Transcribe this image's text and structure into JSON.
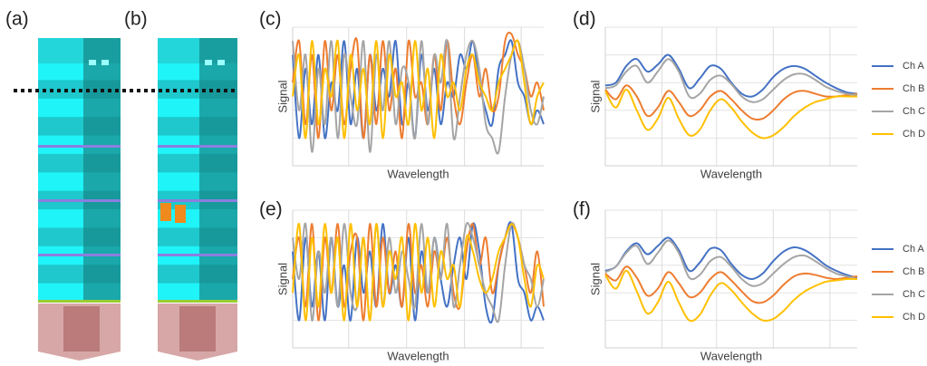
{
  "panel_labels": [
    "(a)",
    "(b)"
  ],
  "chart_data": [
    {
      "type": "line",
      "title": "(c)",
      "x_label": "Wavelength",
      "y_label": "Signal",
      "x": [
        0,
        1,
        2,
        3,
        4,
        5,
        6,
        7,
        8,
        9,
        10,
        11,
        12,
        13,
        14,
        15,
        16,
        17,
        18,
        19,
        20,
        21,
        22,
        23,
        24,
        25,
        26,
        27,
        28,
        29,
        30,
        31,
        32,
        33,
        34,
        35,
        36,
        37,
        38,
        39
      ],
      "xlim": [
        0,
        39
      ],
      "ylim": [
        0,
        10
      ],
      "xticks": [
        8.7,
        17.7,
        26.7,
        35.5
      ],
      "yticks": [
        2,
        4,
        6,
        8,
        10
      ],
      "grid": true,
      "series": [
        {
          "name": "Ch A",
          "color": "#4472c4",
          "values": [
            8,
            2,
            7,
            3,
            8,
            2,
            6,
            4,
            9,
            3,
            7,
            2,
            8,
            4,
            7,
            5,
            9,
            3,
            6,
            2,
            8,
            4,
            7,
            3,
            6,
            5,
            8,
            7,
            9,
            6,
            4,
            3,
            7,
            8,
            9,
            6,
            5,
            3,
            4,
            3
          ]
        },
        {
          "name": "Ch B",
          "color": "#ed7d31",
          "values": [
            6,
            9,
            3,
            8,
            2,
            9,
            4,
            8,
            3,
            7,
            9,
            2,
            8,
            3,
            9,
            4,
            7,
            2,
            9,
            5,
            6,
            3,
            8,
            4,
            9,
            5,
            3,
            6,
            8,
            5,
            7,
            4,
            5,
            9,
            9.5,
            8,
            7,
            5,
            6,
            4
          ]
        },
        {
          "name": "Ch C",
          "color": "#a5a5a5",
          "values": [
            9,
            4,
            8,
            1,
            7,
            3,
            9,
            2,
            8,
            5,
            3,
            9,
            1,
            8,
            4,
            9,
            3,
            7,
            6,
            2,
            9,
            3,
            8,
            6,
            9,
            2,
            5,
            8,
            9,
            7,
            3,
            2,
            1,
            5,
            8,
            9,
            7,
            4,
            3,
            5
          ]
        },
        {
          "name": "Ch D",
          "color": "#ffc000",
          "values": [
            5,
            8,
            2,
            9,
            3,
            7,
            5,
            9,
            2,
            8,
            4,
            7,
            3,
            9,
            2,
            8,
            5,
            6,
            3,
            9,
            4,
            7,
            2,
            8,
            5,
            6,
            4,
            7,
            8,
            6,
            5,
            4,
            6,
            7,
            8,
            9,
            6,
            3,
            5,
            6
          ]
        }
      ]
    },
    {
      "type": "line",
      "title": "(d)",
      "x_label": "Wavelength",
      "y_label": "Signal",
      "x": [
        0,
        1,
        2,
        3,
        4,
        5,
        6,
        7,
        8,
        9,
        10,
        11,
        12,
        13,
        14,
        15,
        16,
        17,
        18,
        19,
        20,
        21,
        22,
        23,
        24
      ],
      "xlim": [
        0,
        24
      ],
      "ylim": [
        0,
        10
      ],
      "xticks": [
        5.4,
        10.6,
        16,
        21.4
      ],
      "yticks": [
        2,
        4,
        6,
        8,
        10
      ],
      "grid": true,
      "legend": "right",
      "series": [
        {
          "name": "Ch A",
          "color": "#4472c4",
          "values": [
            5.8,
            6.0,
            7.2,
            7.7,
            6.8,
            7.3,
            8.0,
            7.0,
            5.6,
            6.3,
            7.2,
            7.0,
            6.0,
            5.2,
            5.0,
            5.5,
            6.4,
            7.0,
            7.2,
            7.0,
            6.5,
            6.0,
            5.6,
            5.3,
            5.2
          ]
        },
        {
          "name": "Ch B",
          "color": "#ed7d31",
          "values": [
            5.5,
            4.8,
            5.8,
            5.0,
            3.6,
            4.2,
            5.4,
            4.6,
            3.6,
            4.0,
            5.0,
            5.4,
            4.8,
            4.0,
            3.4,
            3.4,
            4.0,
            4.8,
            5.3,
            5.4,
            5.2,
            5.0,
            5.0,
            5.1,
            5.2
          ]
        },
        {
          "name": "Ch C",
          "color": "#a5a5a5",
          "values": [
            5.6,
            5.8,
            6.8,
            7.2,
            6.0,
            6.8,
            7.7,
            6.8,
            5.0,
            5.2,
            6.2,
            6.5,
            5.9,
            5.0,
            4.6,
            4.8,
            5.5,
            6.2,
            6.6,
            6.6,
            6.2,
            5.7,
            5.4,
            5.2,
            5.1
          ]
        },
        {
          "name": "Ch D",
          "color": "#ffc000",
          "values": [
            5.4,
            4.2,
            5.5,
            4.0,
            2.6,
            3.4,
            4.9,
            3.4,
            2.2,
            2.6,
            4.0,
            4.8,
            4.2,
            3.2,
            2.4,
            2.0,
            2.2,
            2.8,
            3.6,
            4.2,
            4.6,
            4.8,
            5.0,
            5.0,
            5.0
          ]
        }
      ]
    },
    {
      "type": "line",
      "title": "(e)",
      "x_label": "Wavelength",
      "y_label": "Signal",
      "x": [
        0,
        1,
        2,
        3,
        4,
        5,
        6,
        7,
        8,
        9,
        10,
        11,
        12,
        13,
        14,
        15,
        16,
        17,
        18,
        19,
        20,
        21,
        22,
        23,
        24,
        25,
        26,
        27,
        28,
        29,
        30,
        31,
        32,
        33,
        34,
        35,
        36,
        37,
        38,
        39
      ],
      "xlim": [
        0,
        39
      ],
      "ylim": [
        0,
        10
      ],
      "xticks": [
        8.7,
        17.7,
        26.7,
        35.5
      ],
      "yticks": [
        2,
        4,
        6,
        8,
        10
      ],
      "grid": true,
      "series": [
        {
          "name": "Ch A",
          "color": "#4472c4",
          "values": [
            7,
            2,
            8,
            3,
            7,
            2,
            8,
            3,
            6,
            2,
            8,
            4,
            7,
            3,
            9,
            4,
            6,
            3,
            8,
            2,
            7,
            4,
            8,
            5,
            3,
            6,
            8,
            5,
            9,
            7,
            3,
            2,
            6,
            8,
            9,
            5,
            4,
            2,
            3,
            2
          ]
        },
        {
          "name": "Ch B",
          "color": "#ed7d31",
          "values": [
            5,
            8,
            3,
            9,
            2,
            8,
            4,
            9,
            3,
            7,
            8,
            2,
            9,
            3,
            8,
            4,
            7,
            3,
            9,
            4,
            6,
            3,
            7,
            5,
            8,
            4,
            3,
            7,
            9,
            6,
            8,
            4,
            6,
            8,
            9,
            8,
            6,
            4,
            7,
            3
          ]
        },
        {
          "name": "Ch C",
          "color": "#a5a5a5",
          "values": [
            8,
            5,
            9,
            2,
            7,
            4,
            8,
            3,
            9,
            4,
            3,
            8,
            2,
            9,
            3,
            8,
            4,
            7,
            5,
            3,
            9,
            4,
            8,
            5,
            9,
            3,
            6,
            9,
            8,
            6,
            4,
            3,
            2,
            6,
            9,
            8,
            6,
            5,
            3,
            5
          ]
        },
        {
          "name": "Ch D",
          "color": "#ffc000",
          "values": [
            4,
            9,
            2,
            8,
            3,
            9,
            4,
            8,
            2,
            9,
            3,
            8,
            2,
            9,
            3,
            7,
            5,
            8,
            2,
            9,
            4,
            8,
            3,
            7,
            5,
            6,
            3,
            8,
            7,
            5,
            4,
            5,
            7,
            8,
            9,
            8,
            5,
            3,
            6,
            5
          ]
        }
      ]
    },
    {
      "type": "line",
      "title": "(f)",
      "x_label": "Wavelength",
      "y_label": "Signal",
      "x": [
        0,
        1,
        2,
        3,
        4,
        5,
        6,
        7,
        8,
        9,
        10,
        11,
        12,
        13,
        14,
        15,
        16,
        17,
        18,
        19,
        20,
        21,
        22,
        23,
        24
      ],
      "xlim": [
        0,
        24
      ],
      "ylim": [
        0,
        10
      ],
      "xticks": [
        5.4,
        10.6,
        16,
        21.4
      ],
      "yticks": [
        2,
        4,
        6,
        8,
        10
      ],
      "grid": true,
      "legend": "right",
      "series": [
        {
          "name": "Ch A",
          "color": "#4472c4",
          "values": [
            5.6,
            5.9,
            7.0,
            7.6,
            6.8,
            7.4,
            8.0,
            7.1,
            5.6,
            6.2,
            7.2,
            7.1,
            6.1,
            5.3,
            5.0,
            5.4,
            6.3,
            7.0,
            7.3,
            7.1,
            6.6,
            6.0,
            5.6,
            5.3,
            5.1
          ]
        },
        {
          "name": "Ch B",
          "color": "#ed7d31",
          "values": [
            5.4,
            4.9,
            5.9,
            5.1,
            3.8,
            4.3,
            5.5,
            4.7,
            3.7,
            4.0,
            5.0,
            5.5,
            4.9,
            4.1,
            3.4,
            3.3,
            3.8,
            4.6,
            5.2,
            5.4,
            5.3,
            5.1,
            5.0,
            5.1,
            5.2
          ]
        },
        {
          "name": "Ch C",
          "color": "#a5a5a5",
          "values": [
            5.5,
            5.9,
            6.9,
            7.4,
            6.1,
            6.9,
            7.8,
            6.9,
            5.1,
            5.3,
            6.3,
            6.6,
            5.9,
            5.0,
            4.5,
            4.7,
            5.4,
            6.1,
            6.6,
            6.7,
            6.3,
            5.8,
            5.4,
            5.2,
            5.0
          ]
        },
        {
          "name": "Ch D",
          "color": "#ffc000",
          "values": [
            5.3,
            4.3,
            5.6,
            4.1,
            2.5,
            3.3,
            4.8,
            3.3,
            2.0,
            2.4,
            3.8,
            4.7,
            4.2,
            3.3,
            2.5,
            2.0,
            2.1,
            2.7,
            3.5,
            4.1,
            4.5,
            4.8,
            4.9,
            5.0,
            5.0
          ]
        }
      ]
    }
  ]
}
